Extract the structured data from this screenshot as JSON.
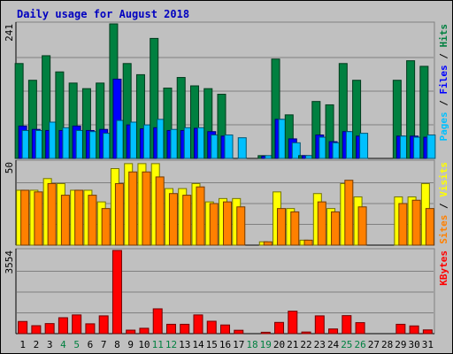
{
  "chart_data": {
    "type": "bar",
    "title": "Daily usage for August 2018",
    "categories": [
      "1",
      "2",
      "3",
      "4",
      "5",
      "6",
      "7",
      "8",
      "9",
      "10",
      "11",
      "12",
      "13",
      "14",
      "15",
      "16",
      "17",
      "18",
      "19",
      "20",
      "21",
      "22",
      "23",
      "24",
      "25",
      "26",
      "27",
      "28",
      "29",
      "30",
      "31"
    ],
    "weekend_days": [
      "4",
      "5",
      "11",
      "12",
      "18",
      "19",
      "25",
      "26"
    ],
    "panels": [
      {
        "name": "hits-files-pages",
        "axis_max_label": "241",
        "ymax": 241,
        "series": [
          {
            "name": "Hits",
            "color": "#008040",
            "values": [
              170,
              140,
              184,
              155,
              135,
              125,
              135,
              241,
              170,
              150,
              215,
              126,
              145,
              130,
              125,
              115,
              0,
              0,
              5,
              178,
              78,
              5,
              102,
              96,
              170,
              140,
              0,
              0,
              140,
              175,
              165
            ]
          },
          {
            "name": "Files",
            "color": "#0000ff",
            "values": [
              58,
              52,
              50,
              50,
              58,
              50,
              52,
              142,
              60,
              53,
              55,
              50,
              50,
              54,
              48,
              40,
              0,
              0,
              4,
              70,
              35,
              5,
              42,
              30,
              48,
              40,
              0,
              0,
              40,
              40,
              38
            ]
          },
          {
            "name": "Pages",
            "color": "#00c0ff",
            "values": [
              50,
              50,
              65,
              55,
              50,
              48,
              45,
              68,
              65,
              60,
              70,
              52,
              55,
              55,
              42,
              42,
              37,
              0,
              5,
              70,
              28,
              5,
              38,
              28,
              48,
              45,
              0,
              0,
              40,
              38,
              42
            ]
          }
        ],
        "legend_parts": [
          "Pages",
          " / ",
          "Files",
          " / ",
          "Hits"
        ]
      },
      {
        "name": "visits-sites",
        "axis_max_label": "50",
        "ymax": 50,
        "series": [
          {
            "name": "Visits",
            "color": "#ffff00",
            "values": [
              33,
              33,
              40,
              37,
              33,
              33,
              26,
              46,
              49,
              49,
              49,
              34,
              34,
              37,
              26,
              28,
              28,
              0,
              2,
              32,
              22,
              3,
              31,
              22,
              37,
              29,
              0,
              0,
              29,
              29,
              37
            ]
          },
          {
            "name": "Sites",
            "color": "#ff8000",
            "values": [
              33,
              32,
              37,
              30,
              33,
              30,
              22,
              37,
              44,
              44,
              41,
              31,
              30,
              35,
              25,
              26,
              23,
              0,
              2,
              22,
              20,
              3,
              26,
              20,
              39,
              23,
              0,
              0,
              25,
              27,
              22
            ]
          }
        ],
        "legend_parts": [
          "Sites",
          " / ",
          "Visits"
        ]
      },
      {
        "name": "kbytes",
        "axis_max_label": "3554",
        "ymax": 3554,
        "series": [
          {
            "name": "KBytes",
            "color": "#ff0000",
            "values": [
              520,
              340,
              430,
              680,
              800,
              420,
              760,
              3554,
              150,
              230,
              1060,
              400,
              400,
              800,
              530,
              370,
              145,
              0,
              60,
              480,
              960,
              70,
              760,
              200,
              770,
              470,
              0,
              0,
              400,
              330,
              160
            ]
          }
        ],
        "legend_parts": [
          "KBytes"
        ]
      }
    ]
  }
}
